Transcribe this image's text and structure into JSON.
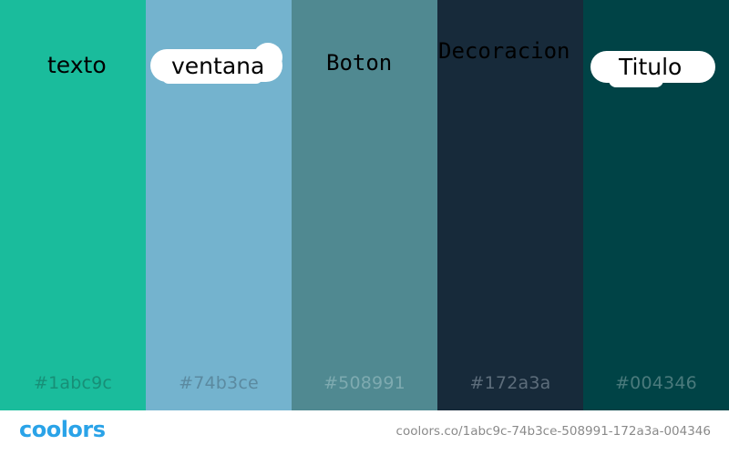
{
  "palette": {
    "swatches": [
      {
        "hex": "#1abc9c",
        "label": "texto"
      },
      {
        "hex": "#74b3ce",
        "label": "ventana"
      },
      {
        "hex": "#508991",
        "label": "Boton"
      },
      {
        "hex": "#172a3a",
        "label": "Decoracion"
      },
      {
        "hex": "#004346",
        "label": "Titulo"
      }
    ]
  },
  "highlight_color": "#ffffff",
  "footer": {
    "logo": "coolors",
    "logo_color": "#2aa3e8",
    "url": "coolors.co/1abc9c-74b3ce-508991-172a3a-004346"
  }
}
